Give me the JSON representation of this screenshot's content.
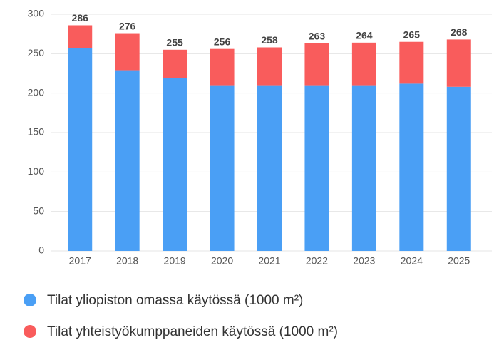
{
  "chart_data": {
    "type": "bar",
    "stacked": true,
    "categories": [
      "2017",
      "2018",
      "2019",
      "2020",
      "2021",
      "2022",
      "2023",
      "2024",
      "2025"
    ],
    "series": [
      {
        "name": "Tilat yliopiston omassa käytössä (1000 m²)",
        "color": "#4a9ff5",
        "values": [
          257,
          229,
          219,
          210,
          210,
          210,
          210,
          212,
          208
        ]
      },
      {
        "name": "Tilat yhteistyökumppaneiden käytössä (1000 m²)",
        "color": "#f95c5c",
        "values": [
          29,
          47,
          36,
          46,
          48,
          53,
          54,
          53,
          60
        ]
      }
    ],
    "totals": [
      286,
      276,
      255,
      256,
      258,
      263,
      264,
      265,
      268
    ],
    "ylim": [
      0,
      300
    ],
    "yticks": [
      0,
      50,
      100,
      150,
      200,
      250,
      300
    ],
    "grid": true
  }
}
